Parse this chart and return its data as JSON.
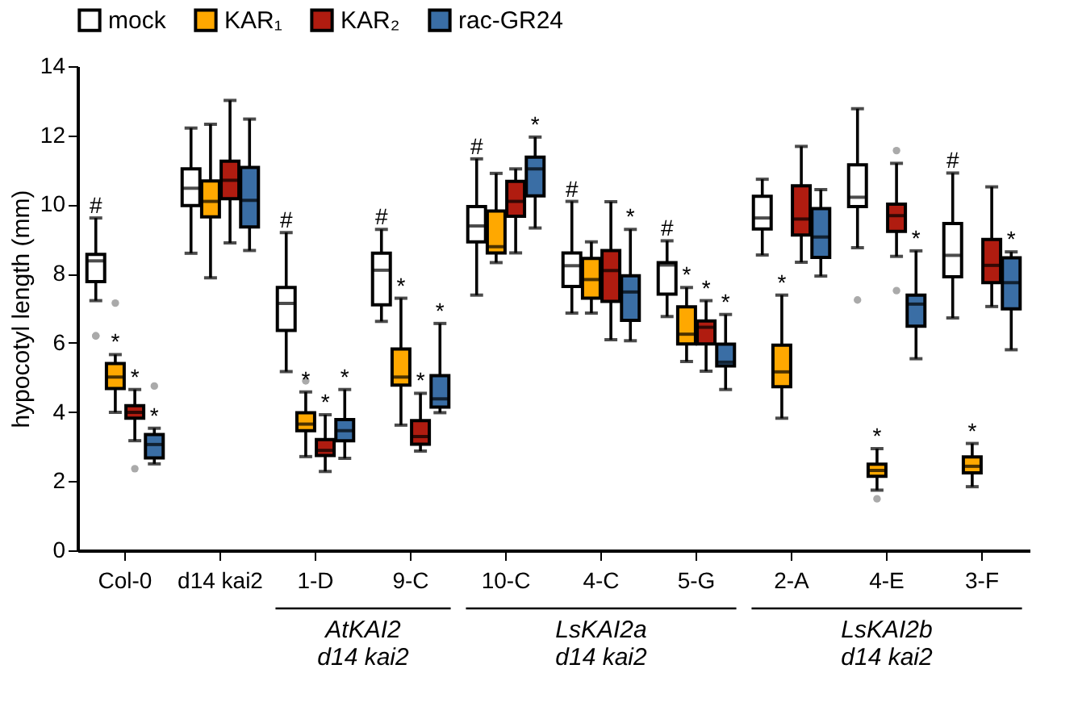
{
  "chart_data": {
    "type": "box",
    "ylabel": "hypocotyl length (mm)",
    "categories": [
      "Col-0",
      "d14 kai2",
      "1-D",
      "9-C",
      "10-C",
      "4-C",
      "5-G",
      "2-A",
      "4-E",
      "3-F"
    ],
    "ylim": [
      0,
      14
    ],
    "yticks": [
      0,
      2,
      4,
      6,
      8,
      10,
      12,
      14
    ],
    "grid": false,
    "legend": "top",
    "series": [
      {
        "name": "mock",
        "color": "#ffffff",
        "boxes": [
          {
            "low": 7.22,
            "q1": 7.77,
            "median": 8.37,
            "q3": 8.56,
            "high": 9.61,
            "outliers": [
              6.2,
              6.2
            ]
          },
          {
            "low": 8.59,
            "q1": 9.97,
            "median": 10.47,
            "q3": 11.03,
            "high": 12.21
          },
          {
            "low": 5.17,
            "q1": 6.36,
            "median": 7.14,
            "q3": 7.6,
            "high": 9.19
          },
          {
            "low": 6.62,
            "q1": 7.1,
            "median": 8.1,
            "q3": 8.59,
            "high": 9.28
          },
          {
            "low": 7.38,
            "q1": 8.92,
            "median": 9.38,
            "q3": 9.94,
            "high": 11.32
          },
          {
            "low": 6.86,
            "q1": 7.63,
            "median": 8.23,
            "q3": 8.6,
            "high": 10.09
          },
          {
            "low": 6.76,
            "q1": 7.41,
            "median": 8.25,
            "q3": 8.32,
            "high": 8.95
          },
          {
            "low": 8.54,
            "q1": 9.29,
            "median": 9.61,
            "q3": 10.24,
            "high": 10.73
          },
          {
            "low": 8.75,
            "q1": 9.94,
            "median": 10.21,
            "q3": 11.15,
            "high": 12.77,
            "outliers": [
              7.24
            ]
          },
          {
            "low": 6.72,
            "q1": 7.91,
            "median": 8.53,
            "q3": 9.45,
            "high": 10.91
          }
        ]
      },
      {
        "name": "KAR₁",
        "color": "#ffa800",
        "boxes": [
          {
            "low": 3.99,
            "q1": 4.68,
            "median": 5.01,
            "q3": 5.4,
            "high": 5.66,
            "outliers": [
              7.15
            ]
          },
          {
            "low": 7.88,
            "q1": 9.64,
            "median": 10.09,
            "q3": 10.68,
            "high": 12.32
          },
          {
            "low": 2.71,
            "q1": 3.46,
            "median": 3.65,
            "q3": 3.98,
            "high": 4.58,
            "outliers": [
              4.9
            ]
          },
          {
            "low": 3.62,
            "q1": 4.78,
            "median": 5.01,
            "q3": 5.82,
            "high": 7.29
          },
          {
            "low": 8.32,
            "q1": 8.6,
            "median": 8.78,
            "q3": 9.81,
            "high": 10.9
          },
          {
            "low": 6.86,
            "q1": 7.29,
            "median": 7.83,
            "q3": 8.44,
            "high": 8.92
          },
          {
            "low": 5.46,
            "q1": 5.97,
            "median": 6.25,
            "q3": 7.04,
            "high": 7.6
          },
          {
            "low": 3.82,
            "q1": 4.73,
            "median": 5.16,
            "q3": 5.93,
            "high": 7.38
          },
          {
            "low": 1.74,
            "q1": 2.14,
            "median": 2.31,
            "q3": 2.49,
            "high": 2.94,
            "outliers": [
              1.49
            ]
          },
          {
            "low": 1.84,
            "q1": 2.24,
            "median": 2.43,
            "q3": 2.7,
            "high": 3.09
          }
        ]
      },
      {
        "name": "KAR₂",
        "color": "#b01c10",
        "boxes": [
          {
            "low": 3.17,
            "q1": 3.82,
            "median": 3.99,
            "q3": 4.18,
            "high": 4.65,
            "outliers": [
              2.36
            ]
          },
          {
            "low": 8.89,
            "q1": 10.17,
            "median": 10.7,
            "q3": 11.25,
            "high": 13.01
          },
          {
            "low": 2.28,
            "q1": 2.74,
            "median": 2.89,
            "q3": 3.2,
            "high": 3.92
          },
          {
            "low": 2.87,
            "q1": 3.07,
            "median": 3.29,
            "q3": 3.75,
            "high": 4.54
          },
          {
            "low": 8.6,
            "q1": 9.66,
            "median": 10.09,
            "q3": 10.67,
            "high": 11.03
          },
          {
            "low": 6.09,
            "q1": 7.2,
            "median": 8.09,
            "q3": 8.67,
            "high": 10.08
          },
          {
            "low": 5.18,
            "q1": 5.97,
            "median": 6.45,
            "q3": 6.63,
            "high": 7.22
          },
          {
            "low": 8.33,
            "q1": 9.12,
            "median": 9.58,
            "q3": 10.54,
            "high": 11.68
          },
          {
            "low": 8.5,
            "q1": 9.22,
            "median": 9.68,
            "q3": 10.01,
            "high": 11.19,
            "outliers": [
              11.56,
              7.51
            ]
          },
          {
            "low": 7.05,
            "q1": 7.74,
            "median": 8.24,
            "q3": 8.99,
            "high": 10.51
          }
        ]
      },
      {
        "name": "rac-GR24",
        "color": "#3a6ea5",
        "boxes": [
          {
            "low": 2.5,
            "q1": 2.67,
            "median": 3.06,
            "q3": 3.35,
            "high": 3.53,
            "outliers": [
              4.75
            ]
          },
          {
            "low": 8.67,
            "q1": 9.35,
            "median": 10.12,
            "q3": 11.07,
            "high": 12.47
          },
          {
            "low": 2.66,
            "q1": 3.17,
            "median": 3.46,
            "q3": 3.78,
            "high": 4.65
          },
          {
            "low": 3.98,
            "q1": 4.14,
            "median": 4.38,
            "q3": 5.05,
            "high": 6.56
          },
          {
            "low": 9.32,
            "q1": 10.25,
            "median": 11.03,
            "q3": 11.37,
            "high": 11.95
          },
          {
            "low": 6.06,
            "q1": 6.65,
            "median": 7.47,
            "q3": 7.94,
            "high": 9.28
          },
          {
            "low": 4.65,
            "q1": 5.33,
            "median": 5.44,
            "q3": 5.96,
            "high": 6.82
          },
          {
            "low": 7.93,
            "q1": 8.47,
            "median": 9.06,
            "q3": 9.88,
            "high": 10.43
          },
          {
            "low": 5.54,
            "q1": 6.48,
            "median": 7.12,
            "q3": 7.38,
            "high": 8.66
          },
          {
            "low": 5.8,
            "q1": 6.98,
            "median": 7.74,
            "q3": 8.46,
            "high": 8.63
          }
        ]
      }
    ],
    "annotations": [
      "#",
      "*",
      "*",
      "*",
      "#",
      "*",
      "*",
      "*",
      "#",
      "*",
      "*",
      "*",
      "#",
      "*",
      "#",
      "*",
      "#",
      "*",
      "*",
      "*",
      "*",
      "*",
      "*",
      "#",
      "*",
      "*",
      "AtKAI2\nd14 kai2",
      "LsKAI2a\nd14 kai2",
      "LsKAI2b\nd14 kai2"
    ]
  }
}
